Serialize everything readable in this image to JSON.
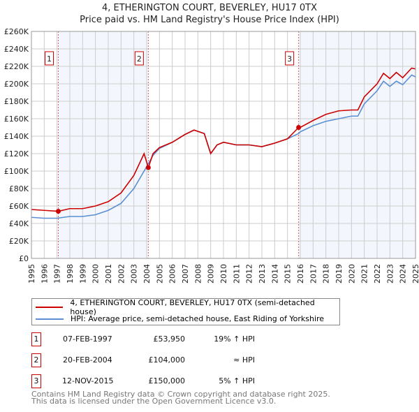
{
  "chart_data": {
    "type": "line",
    "title": "4, ETHERINGTON COURT, BEVERLEY, HU17 0TX",
    "subtitle": "Price paid vs. HM Land Registry's House Price Index (HPI)",
    "xlim": [
      1995,
      2025
    ],
    "ylim": [
      0,
      260000
    ],
    "x_ticks": [
      "1995",
      "1996",
      "1997",
      "1998",
      "1999",
      "2000",
      "2001",
      "2002",
      "2003",
      "2004",
      "2005",
      "2006",
      "2007",
      "2008",
      "2009",
      "2010",
      "2011",
      "2012",
      "2013",
      "2014",
      "2015",
      "2016",
      "2017",
      "2018",
      "2019",
      "2020",
      "2021",
      "2022",
      "2023",
      "2024",
      "2025"
    ],
    "y_ticks": [
      "£0",
      "£20K",
      "£40K",
      "£60K",
      "£80K",
      "£100K",
      "£120K",
      "£140K",
      "£160K",
      "£180K",
      "£200K",
      "£220K",
      "£240K",
      "£260K"
    ],
    "grid": true,
    "series": [
      {
        "name": "4, ETHERINGTON COURT, BEVERLEY, HU17 0TX (semi-detached house)",
        "color": "#cc0000",
        "x": [
          1995,
          1996,
          1997.1,
          1998,
          1999,
          2000,
          2001,
          2002,
          2003,
          2003.8,
          2004.13,
          2004.5,
          2005,
          2006,
          2007,
          2007.7,
          2008.5,
          2009,
          2009.5,
          2010,
          2011,
          2012,
          2013,
          2014,
          2015,
          2015.87,
          2016,
          2017,
          2018,
          2019,
          2020,
          2020.5,
          2021,
          2022,
          2022.5,
          2023,
          2023.5,
          2024,
          2024.7,
          2025
        ],
        "y": [
          56000,
          55000,
          53950,
          57000,
          57000,
          60000,
          65000,
          75000,
          95000,
          120000,
          104000,
          120000,
          127000,
          133000,
          142000,
          147000,
          143000,
          120000,
          130000,
          133000,
          130000,
          130000,
          128000,
          132000,
          137000,
          150000,
          150000,
          158000,
          165000,
          169000,
          170000,
          170000,
          185000,
          200000,
          212000,
          206000,
          213000,
          207000,
          218000,
          217000
        ]
      },
      {
        "name": "HPI: Average price, semi-detached house, East Riding of Yorkshire",
        "color": "#5b8fd4",
        "x": [
          1995,
          1996,
          1997,
          1998,
          1999,
          2000,
          2001,
          2002,
          2003,
          2003.8,
          2004.5,
          2005,
          2006,
          2007,
          2007.7,
          2008.5,
          2009,
          2009.5,
          2010,
          2011,
          2012,
          2013,
          2014,
          2015,
          2015.87,
          2016,
          2017,
          2018,
          2019,
          2020,
          2020.5,
          2021,
          2022,
          2022.5,
          2023,
          2023.5,
          2024,
          2024.7,
          2025
        ],
        "y": [
          47000,
          46000,
          46000,
          48000,
          48000,
          50000,
          55000,
          63000,
          80000,
          100000,
          118000,
          126000,
          133000,
          142000,
          147000,
          143000,
          120000,
          130000,
          133000,
          130000,
          130000,
          128000,
          132000,
          137000,
          143000,
          145000,
          152000,
          157000,
          160000,
          163000,
          163000,
          177000,
          192000,
          203000,
          197000,
          203000,
          199000,
          210000,
          208000
        ]
      }
    ],
    "sales": [
      {
        "label": "1",
        "x": 1997.1,
        "price": 53950,
        "date": "07-FEB-1997",
        "price_text": "£53,950",
        "hpi": "19% ↑ HPI"
      },
      {
        "label": "2",
        "x": 2004.13,
        "price": 104000,
        "date": "20-FEB-2004",
        "price_text": "£104,000",
        "hpi": "≈ HPI"
      },
      {
        "label": "3",
        "x": 2015.87,
        "price": 150000,
        "date": "12-NOV-2015",
        "price_text": "£150,000",
        "hpi": "5% ↑ HPI"
      }
    ]
  },
  "footer": {
    "line1": "Contains HM Land Registry data © Crown copyright and database right 2025.",
    "line2": "This data is licensed under the Open Government Licence v3.0."
  }
}
